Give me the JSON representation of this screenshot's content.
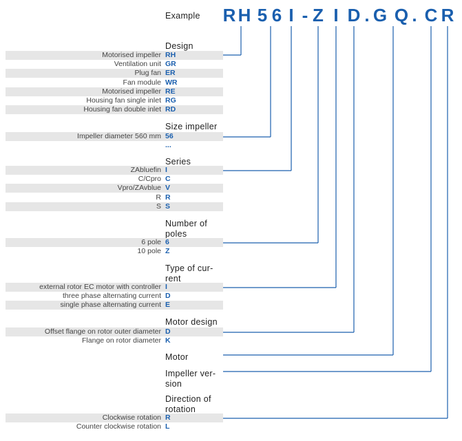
{
  "example_label": "Example",
  "code_chars": [
    "R",
    "H",
    "5",
    "6",
    "I",
    "-",
    "Z",
    "I",
    "D",
    ".",
    "G",
    "Q",
    ".",
    "C",
    "R"
  ],
  "accent_color": "#1a5fae",
  "sections": [
    {
      "heading": [
        "Design"
      ],
      "rows": [
        {
          "label": "Motorised impeller",
          "code": "RH"
        },
        {
          "label": "Ventilation unit",
          "code": "GR"
        },
        {
          "label": "Plug fan",
          "code": "ER"
        },
        {
          "label": "Fan module",
          "code": "WR"
        },
        {
          "label": "Motorised impeller",
          "code": "RE"
        },
        {
          "label": "Housing fan single inlet",
          "code": "RG"
        },
        {
          "label": "Housing fan double inlet",
          "code": "RD"
        }
      ]
    },
    {
      "heading": [
        "Size impeller"
      ],
      "rows": [
        {
          "label": "Impeller diameter 560 mm",
          "code": "56"
        },
        {
          "label": "",
          "code": "..."
        }
      ]
    },
    {
      "heading": [
        "Series"
      ],
      "rows": [
        {
          "label": "ZAbluefin",
          "code": "I"
        },
        {
          "label": "C/Cpro",
          "code": "C"
        },
        {
          "label": "Vpro/ZAvblue",
          "code": "V"
        },
        {
          "label": "R",
          "code": "R"
        },
        {
          "label": "S",
          "code": "S"
        }
      ]
    },
    {
      "heading": [
        "Number of",
        "poles"
      ],
      "rows": [
        {
          "label": "6 pole",
          "code": "6"
        },
        {
          "label": "10 pole",
          "code": "Z"
        }
      ]
    },
    {
      "heading": [
        "Type of cur-",
        "rent"
      ],
      "rows": [
        {
          "label": "external rotor EC motor with controller",
          "code": "I"
        },
        {
          "label": "three phase alternating current",
          "code": "D"
        },
        {
          "label": "single phase alternating current",
          "code": "E"
        }
      ]
    },
    {
      "heading": [
        "Motor design"
      ],
      "rows": [
        {
          "label": "Offset flange on rotor outer diameter",
          "code": "D"
        },
        {
          "label": "Flange on rotor diameter",
          "code": "K"
        }
      ]
    },
    {
      "heading": [
        "Motor"
      ],
      "rows": []
    },
    {
      "heading": [
        "Impeller ver-",
        "sion"
      ],
      "rows": []
    },
    {
      "heading": [
        "Direction of",
        "rotation"
      ],
      "rows": [
        {
          "label": "Clockwise rotation",
          "code": "R"
        },
        {
          "label": "Counter clockwise rotation",
          "code": "L"
        }
      ]
    }
  ]
}
